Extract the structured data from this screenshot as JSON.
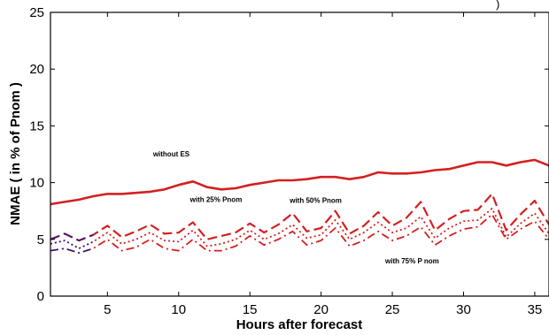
{
  "chart_data": {
    "type": "line",
    "title_fragment": ")",
    "xlabel": "Hours after forecast",
    "ylabel": "NMAE ( in % of Pnom )",
    "xlim": [
      1,
      36
    ],
    "ylim": [
      0,
      25
    ],
    "xticks": [
      5,
      10,
      15,
      20,
      25,
      30,
      35
    ],
    "yticks": [
      0,
      5,
      10,
      15,
      20,
      25
    ],
    "grid": false,
    "colors": {
      "series": "#d42020",
      "early_segment": "#1a1a8a",
      "frame": "#000000"
    },
    "x": [
      1,
      2,
      3,
      4,
      5,
      6,
      7,
      8,
      9,
      10,
      11,
      12,
      13,
      14,
      15,
      16,
      17,
      18,
      19,
      20,
      21,
      22,
      23,
      24,
      25,
      26,
      27,
      28,
      29,
      30,
      31,
      32,
      33,
      34,
      35,
      36
    ],
    "series": [
      {
        "style": "solid",
        "values": [
          8.1,
          8.3,
          8.5,
          8.8,
          9.0,
          9.0,
          9.1,
          9.2,
          9.4,
          9.8,
          10.1,
          9.6,
          9.4,
          9.5,
          9.8,
          10.0,
          10.2,
          10.2,
          10.3,
          10.5,
          10.5,
          10.3,
          10.5,
          10.9,
          10.8,
          10.8,
          10.9,
          11.1,
          11.2,
          11.5,
          11.8,
          11.8,
          11.5,
          11.8,
          12.0,
          11.5
        ]
      },
      {
        "style": "dashed",
        "values": [
          5.0,
          5.5,
          4.9,
          5.4,
          6.2,
          5.2,
          5.7,
          6.3,
          5.5,
          5.6,
          6.5,
          5.0,
          5.3,
          5.6,
          6.4,
          5.6,
          6.3,
          7.3,
          5.7,
          6.0,
          7.5,
          5.5,
          6.2,
          7.4,
          6.2,
          6.9,
          8.3,
          5.8,
          6.8,
          7.5,
          7.6,
          9.0,
          5.8,
          7.2,
          8.4,
          6.3
        ]
      },
      {
        "style": "dotted",
        "values": [
          4.6,
          4.9,
          4.2,
          4.8,
          5.6,
          4.6,
          5.0,
          5.6,
          4.9,
          4.8,
          5.8,
          4.4,
          4.6,
          5.0,
          5.8,
          5.0,
          5.5,
          6.3,
          5.1,
          5.4,
          6.7,
          5.0,
          5.6,
          6.5,
          5.6,
          6.0,
          7.0,
          5.1,
          6.0,
          6.6,
          6.7,
          7.7,
          5.2,
          6.4,
          7.3,
          5.5
        ]
      },
      {
        "style": "dashdot",
        "values": [
          4.0,
          4.2,
          3.8,
          4.2,
          5.0,
          4.0,
          4.3,
          5.0,
          4.2,
          4.0,
          5.0,
          4.0,
          4.0,
          4.4,
          5.3,
          4.5,
          5.0,
          5.7,
          4.5,
          4.9,
          6.0,
          4.4,
          4.9,
          5.7,
          4.9,
          5.3,
          6.1,
          4.5,
          5.3,
          5.9,
          6.1,
          7.2,
          5.0,
          5.9,
          6.6,
          5.0
        ]
      }
    ],
    "annotations": [
      {
        "text": "without ES",
        "x": 8.2,
        "y": 12.3
      },
      {
        "text": "with 25% Pnom",
        "x": 10.8,
        "y": 8.3
      },
      {
        "text": "with 50% Pnom",
        "x": 17.8,
        "y": 8.2
      },
      {
        "text": "with 75% P nom",
        "x": 24.5,
        "y": 2.9
      }
    ]
  }
}
